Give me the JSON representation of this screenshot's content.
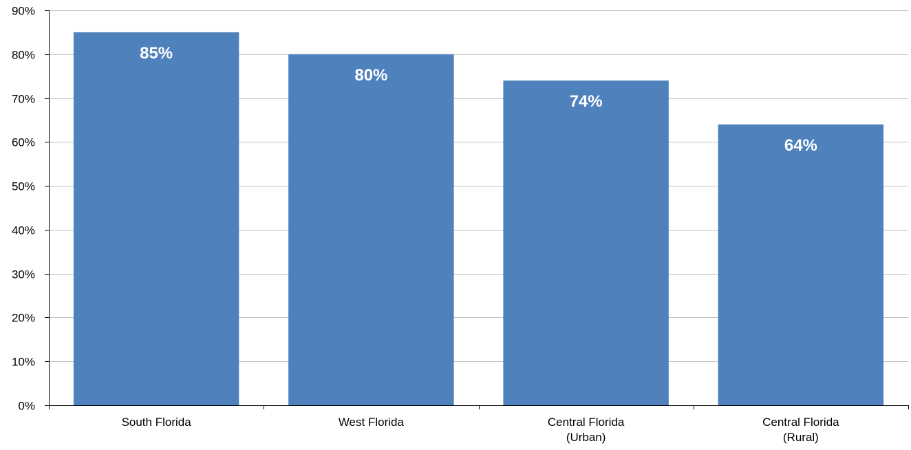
{
  "chart_data": {
    "type": "bar",
    "categories": [
      [
        "South Florida"
      ],
      [
        "West Florida"
      ],
      [
        "Central Florida",
        "(Urban)"
      ],
      [
        "Central Florida",
        "(Rural)"
      ]
    ],
    "values": [
      85,
      80,
      74,
      64
    ],
    "data_labels": [
      "85%",
      "80%",
      "74%",
      "64%"
    ],
    "ylim": [
      0,
      90
    ],
    "yticks": [
      0,
      10,
      20,
      30,
      40,
      50,
      60,
      70,
      80,
      90
    ],
    "ytick_labels": [
      "0%",
      "10%",
      "20%",
      "30%",
      "40%",
      "50%",
      "60%",
      "70%",
      "80%",
      "90%"
    ],
    "grid": true,
    "legend": "none",
    "colors": {
      "bar": "#4f81bd",
      "grid": "#bfbfbf",
      "axis": "#000000"
    }
  }
}
